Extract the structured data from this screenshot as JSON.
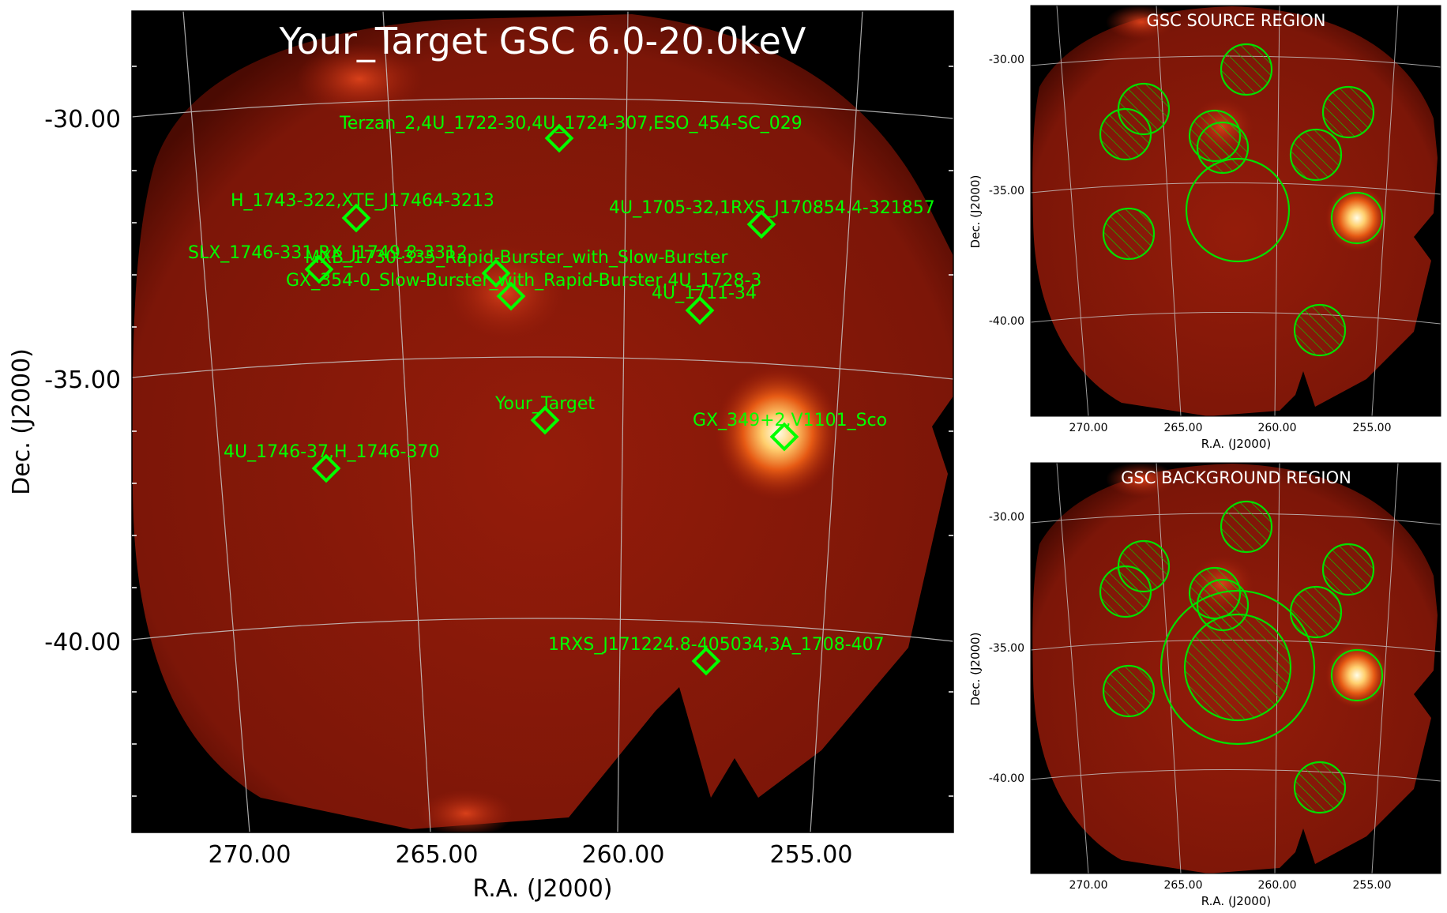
{
  "main_panel": {
    "title": "Your_Target GSC 6.0-20.0keV",
    "xlabel": "R.A. (J2000)",
    "ylabel": "Dec. (J2000)",
    "xticks": [
      "270.00",
      "265.00",
      "260.00",
      "255.00"
    ],
    "yticks": [
      "-30.00",
      "-35.00",
      "-40.00"
    ],
    "sources": [
      "Terzan_2,4U_1722-30,4U_1724-307,ESO_454-SC_029",
      "H_1743-322,XTE_J17464-3213",
      "4U_1705-32,1RXS_J170854.4-321857",
      "SLX_1746-331,RX_J1749.8-3312",
      "MXB_1730-335_Rapid-Burster_with_Slow-Burster",
      "GX_354-0_Slow-Burster_with_Rapid-Burster,4U_1728-3",
      "4U_1711-34",
      "Your_Target",
      "GX_349+2,V1101_Sco",
      "4U_1746-37,H_1746-370",
      "1RXS_J171224.8-405034,3A_1708-407"
    ]
  },
  "source_panel": {
    "title": "GSC SOURCE REGION",
    "xlabel": "R.A. (J2000)",
    "ylabel": "Dec. (J2000)",
    "xticks": [
      "270.00",
      "265.00",
      "260.00",
      "255.00"
    ],
    "yticks": [
      "-30.00",
      "-35.00",
      "-40.00"
    ]
  },
  "background_panel": {
    "title": "GSC BACKGROUND REGION",
    "xlabel": "R.A. (J2000)",
    "ylabel": "Dec. (J2000)",
    "xticks": [
      "270.00",
      "265.00",
      "260.00",
      "255.00"
    ],
    "yticks": [
      "-30.00",
      "-35.00",
      "-40.00"
    ]
  },
  "colors": {
    "marker": "#00ff00",
    "background": "#000000",
    "diffuse": "#8a1a08",
    "grid": "#c8c8c8"
  }
}
